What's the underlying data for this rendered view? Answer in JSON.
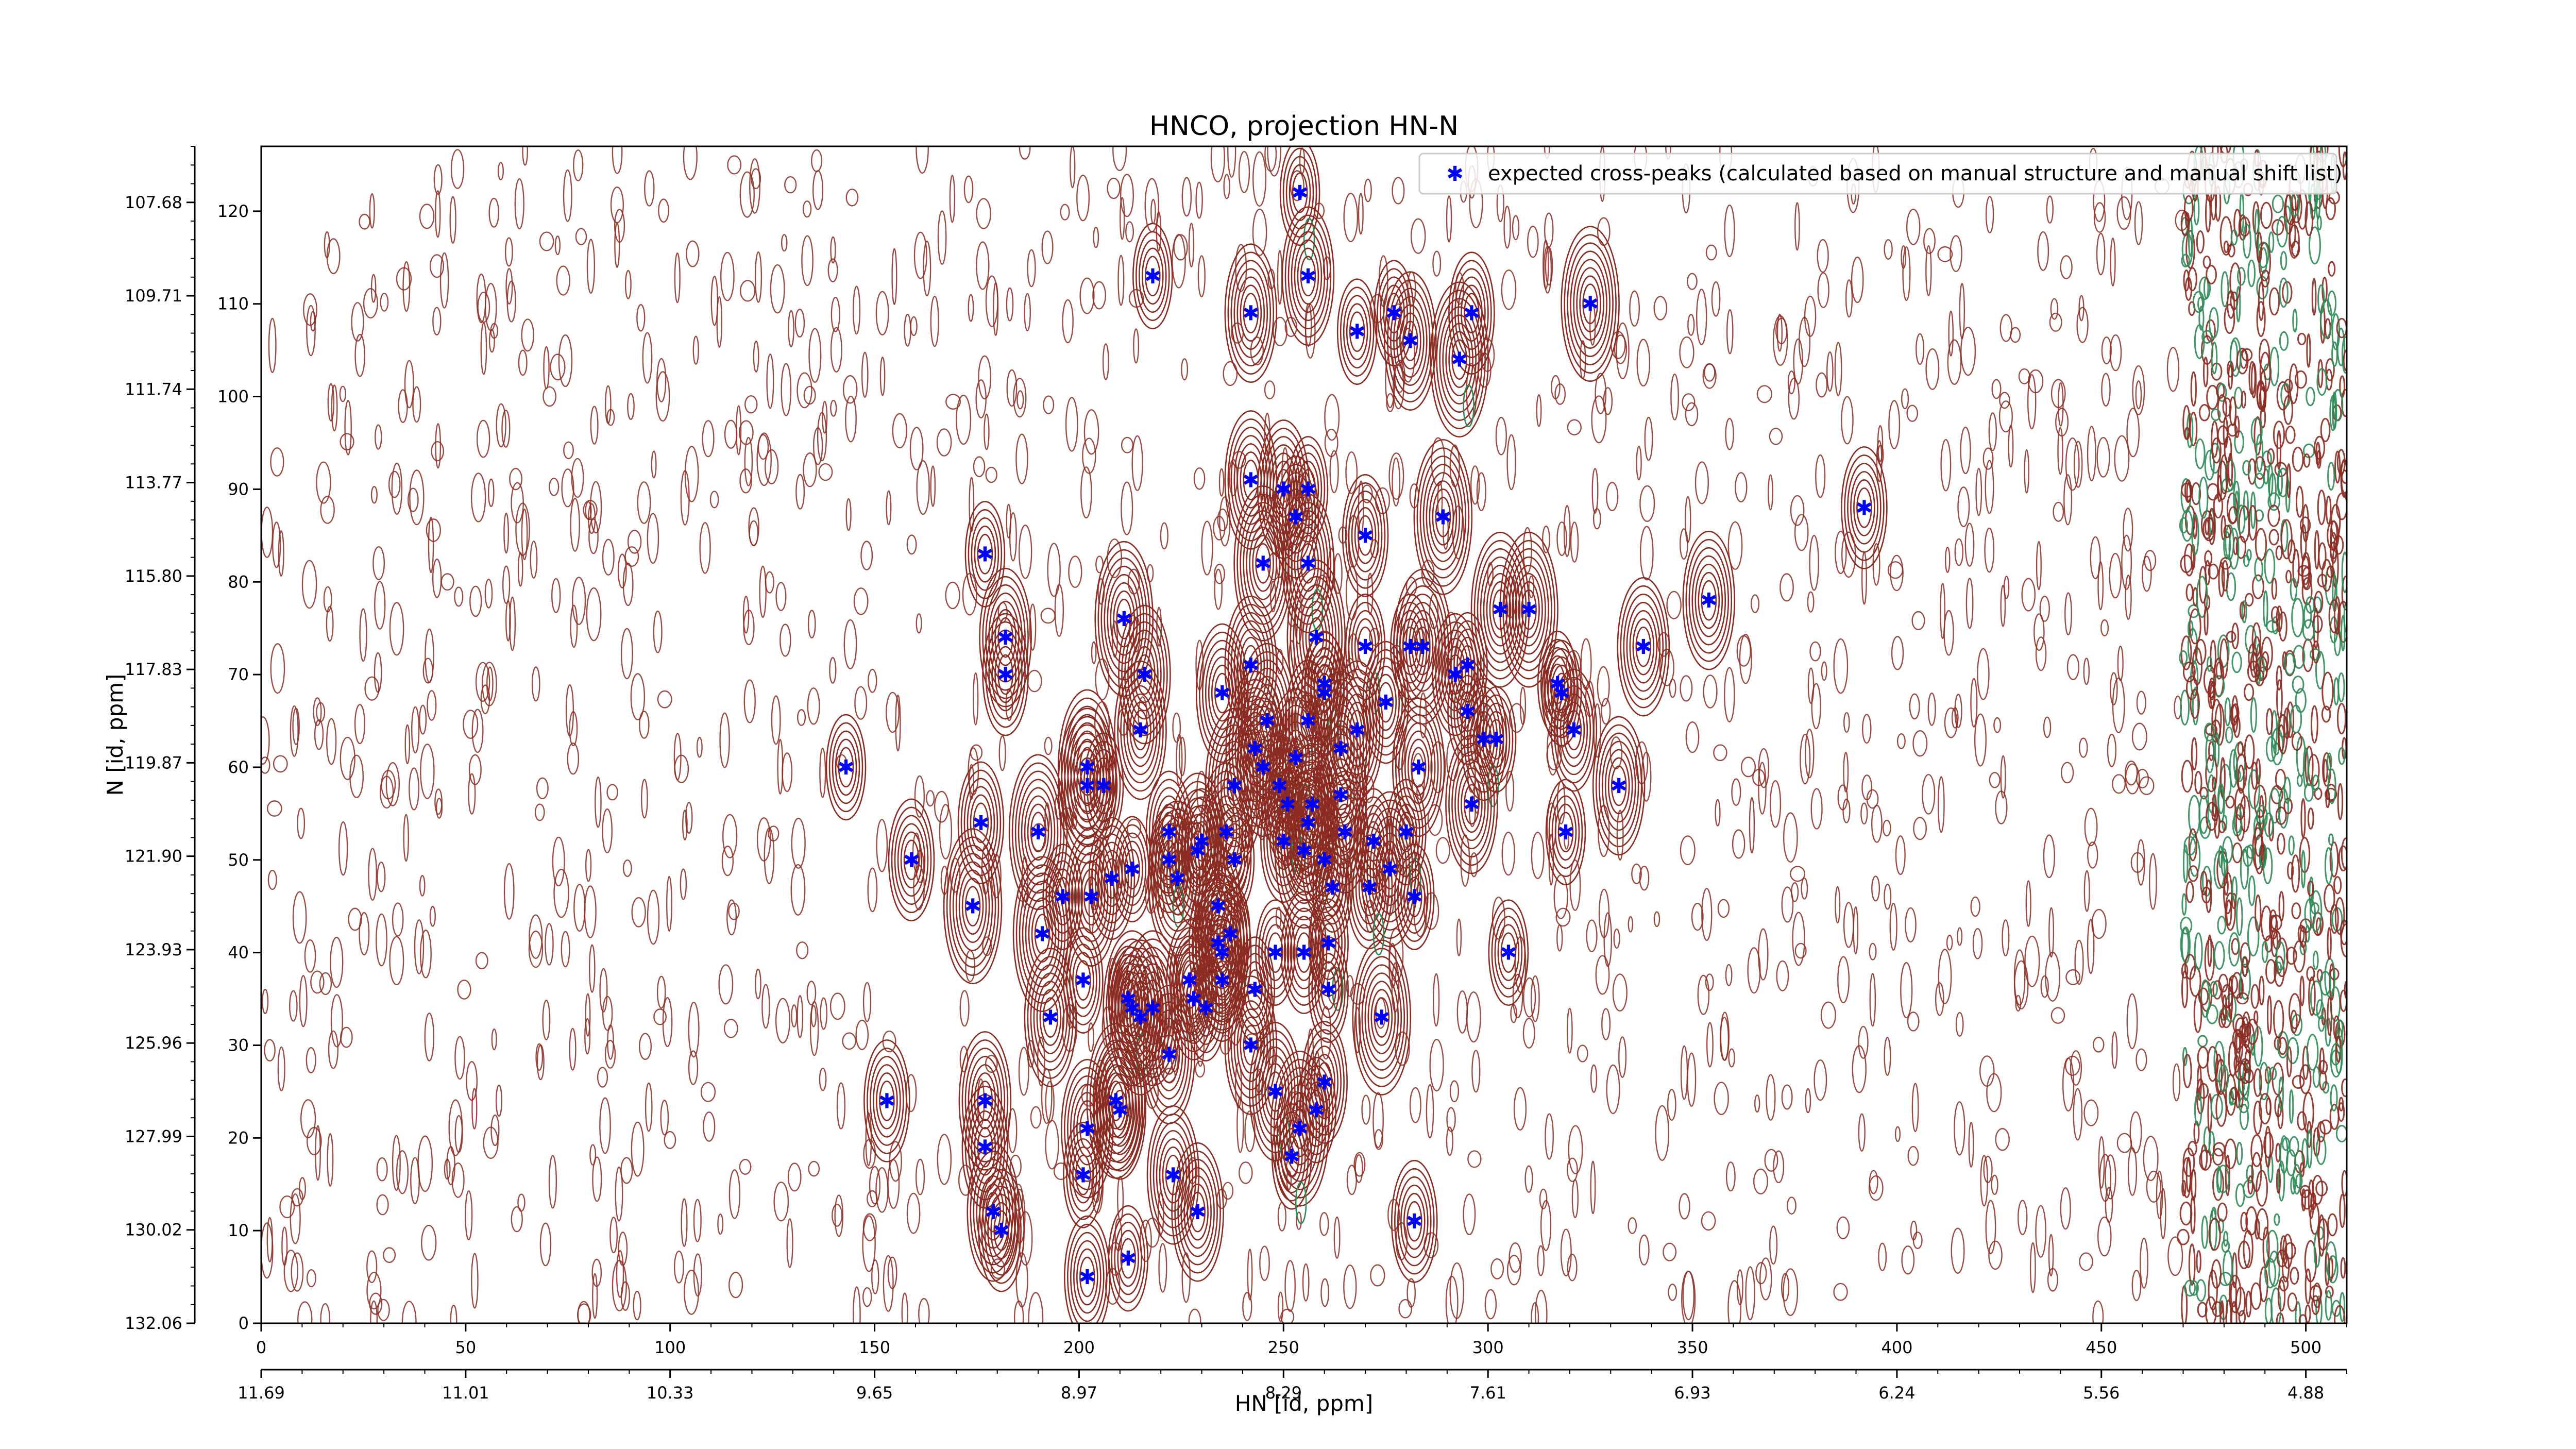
{
  "chart_data": {
    "type": "scatter",
    "title": "HNCO, projection HN-N",
    "xlabel": "HN [id, ppm]",
    "ylabel": "N [id, ppm]",
    "xlim": [
      0,
      510
    ],
    "ylim": [
      0,
      127
    ],
    "x_ticks": [
      0,
      50,
      100,
      150,
      200,
      250,
      300,
      350,
      400,
      450,
      500
    ],
    "y_ticks": [
      0,
      10,
      20,
      30,
      40,
      50,
      60,
      70,
      80,
      90,
      100,
      110,
      120
    ],
    "x_secondary_ticks": [
      "11.69",
      "11.01",
      "10.33",
      "9.65",
      "8.97",
      "8.29",
      "7.61",
      "6.93",
      "6.24",
      "5.56",
      "4.88"
    ],
    "y_secondary_ticks": [
      "132.06",
      "130.02",
      "127.99",
      "125.96",
      "123.93",
      "121.90",
      "119.87",
      "117.83",
      "115.80",
      "113.77",
      "111.74",
      "109.71",
      "107.68"
    ],
    "legend": {
      "label": "expected cross-peaks (calculated based on manual structure and manual shift list)",
      "position": "top-right"
    },
    "grid": false,
    "colors": {
      "peaks": "#0000ff",
      "contour_positive": "#8b2b22",
      "contour_negative": "#2e8b57"
    },
    "series": [
      {
        "name": "expected cross-peaks (calculated based on manual structure and manual shift list)",
        "points": [
          [
            254,
            122
          ],
          [
            218,
            113
          ],
          [
            256,
            113
          ],
          [
            242,
            109
          ],
          [
            277,
            109
          ],
          [
            296,
            109
          ],
          [
            325,
            110
          ],
          [
            268,
            107
          ],
          [
            281,
            106
          ],
          [
            293,
            104
          ],
          [
            242,
            91
          ],
          [
            250,
            90
          ],
          [
            256,
            90
          ],
          [
            253,
            87
          ],
          [
            289,
            87
          ],
          [
            270,
            85
          ],
          [
            177,
            83
          ],
          [
            245,
            82
          ],
          [
            256,
            82
          ],
          [
            392,
            88
          ],
          [
            354,
            78
          ],
          [
            211,
            76
          ],
          [
            303,
            77
          ],
          [
            310,
            77
          ],
          [
            182,
            74
          ],
          [
            338,
            73
          ],
          [
            258,
            74
          ],
          [
            270,
            73
          ],
          [
            281,
            73
          ],
          [
            284,
            73
          ],
          [
            216,
            70
          ],
          [
            242,
            71
          ],
          [
            182,
            70
          ],
          [
            292,
            70
          ],
          [
            295,
            71
          ],
          [
            235,
            68
          ],
          [
            260,
            69
          ],
          [
            260,
            68
          ],
          [
            275,
            67
          ],
          [
            317,
            69
          ],
          [
            318,
            68
          ],
          [
            295,
            66
          ],
          [
            246,
            65
          ],
          [
            256,
            65
          ],
          [
            268,
            64
          ],
          [
            299,
            63
          ],
          [
            302,
            63
          ],
          [
            321,
            64
          ],
          [
            215,
            64
          ],
          [
            143,
            60
          ],
          [
            202,
            60
          ],
          [
            243,
            62
          ],
          [
            245,
            60
          ],
          [
            264,
            62
          ],
          [
            253,
            61
          ],
          [
            283,
            60
          ],
          [
            206,
            58
          ],
          [
            202,
            58
          ],
          [
            332,
            58
          ],
          [
            238,
            58
          ],
          [
            249,
            58
          ],
          [
            257,
            56
          ],
          [
            264,
            57
          ],
          [
            251,
            56
          ],
          [
            296,
            56
          ],
          [
            176,
            54
          ],
          [
            190,
            53
          ],
          [
            222,
            53
          ],
          [
            236,
            53
          ],
          [
            256,
            54
          ],
          [
            265,
            53
          ],
          [
            272,
            52
          ],
          [
            280,
            53
          ],
          [
            319,
            53
          ],
          [
            230,
            52
          ],
          [
            229,
            51
          ],
          [
            250,
            52
          ],
          [
            255,
            51
          ],
          [
            159,
            50
          ],
          [
            208,
            48
          ],
          [
            213,
            49
          ],
          [
            222,
            50
          ],
          [
            224,
            48
          ],
          [
            238,
            50
          ],
          [
            260,
            50
          ],
          [
            276,
            49
          ],
          [
            196,
            46
          ],
          [
            203,
            46
          ],
          [
            262,
            47
          ],
          [
            282,
            46
          ],
          [
            271,
            47
          ],
          [
            234,
            45
          ],
          [
            174,
            45
          ],
          [
            191,
            42
          ],
          [
            237,
            42
          ],
          [
            235,
            40
          ],
          [
            234,
            41
          ],
          [
            248,
            40
          ],
          [
            255,
            40
          ],
          [
            261,
            41
          ],
          [
            305,
            40
          ],
          [
            201,
            37
          ],
          [
            227,
            37
          ],
          [
            235,
            37
          ],
          [
            243,
            36
          ],
          [
            228,
            35
          ],
          [
            212,
            35
          ],
          [
            261,
            36
          ],
          [
            213,
            34
          ],
          [
            218,
            34
          ],
          [
            231,
            34
          ],
          [
            215,
            33
          ],
          [
            193,
            33
          ],
          [
            274,
            33
          ],
          [
            242,
            30
          ],
          [
            222,
            29
          ],
          [
            260,
            26
          ],
          [
            248,
            25
          ],
          [
            153,
            24
          ],
          [
            177,
            24
          ],
          [
            258,
            23
          ],
          [
            209,
            24
          ],
          [
            210,
            23
          ],
          [
            202,
            21
          ],
          [
            254,
            21
          ],
          [
            177,
            19
          ],
          [
            252,
            18
          ],
          [
            201,
            16
          ],
          [
            223,
            16
          ],
          [
            179,
            12
          ],
          [
            229,
            12
          ],
          [
            282,
            11
          ],
          [
            181,
            10
          ],
          [
            212,
            7
          ],
          [
            202,
            5
          ]
        ]
      }
    ]
  }
}
